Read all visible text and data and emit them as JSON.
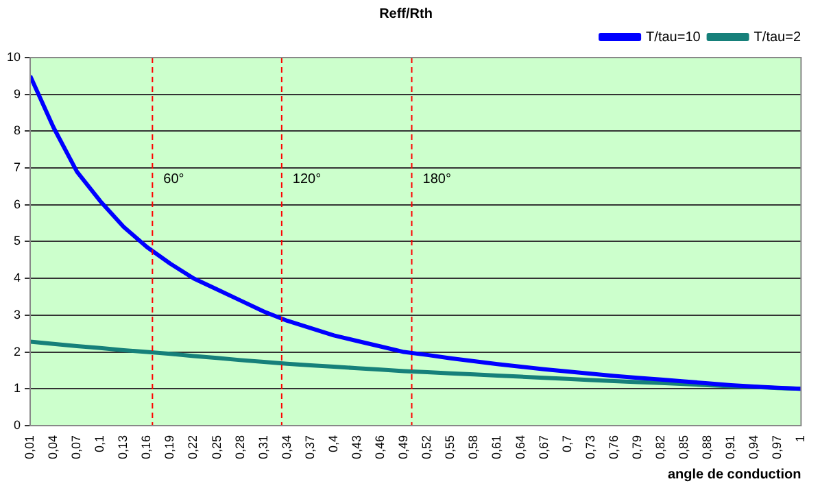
{
  "chart_data": {
    "type": "line",
    "title": "Reff/Rth",
    "xlabel": "angle de conduction",
    "x": [
      0.01,
      0.04,
      0.07,
      0.1,
      0.13,
      0.16,
      0.19,
      0.22,
      0.25,
      0.28,
      0.31,
      0.34,
      0.37,
      0.4,
      0.43,
      0.46,
      0.49,
      0.52,
      0.55,
      0.58,
      0.61,
      0.64,
      0.67,
      0.7,
      0.73,
      0.76,
      0.79,
      0.82,
      0.85,
      0.88,
      0.91,
      0.94,
      0.97,
      1
    ],
    "xlim": [
      0.01,
      1
    ],
    "xticks": [
      {
        "value": 0.01,
        "label": "0,01"
      },
      {
        "value": 0.04,
        "label": "0,04"
      },
      {
        "value": 0.07,
        "label": "0,07"
      },
      {
        "value": 0.1,
        "label": "0,1"
      },
      {
        "value": 0.13,
        "label": "0,13"
      },
      {
        "value": 0.16,
        "label": "0,16"
      },
      {
        "value": 0.19,
        "label": "0,19"
      },
      {
        "value": 0.22,
        "label": "0,22"
      },
      {
        "value": 0.25,
        "label": "0,25"
      },
      {
        "value": 0.28,
        "label": "0,28"
      },
      {
        "value": 0.31,
        "label": "0,31"
      },
      {
        "value": 0.34,
        "label": "0,34"
      },
      {
        "value": 0.37,
        "label": "0,37"
      },
      {
        "value": 0.4,
        "label": "0,4"
      },
      {
        "value": 0.43,
        "label": "0,43"
      },
      {
        "value": 0.46,
        "label": "0,46"
      },
      {
        "value": 0.49,
        "label": "0,49"
      },
      {
        "value": 0.52,
        "label": "0,52"
      },
      {
        "value": 0.55,
        "label": "0,55"
      },
      {
        "value": 0.58,
        "label": "0,58"
      },
      {
        "value": 0.61,
        "label": "0,61"
      },
      {
        "value": 0.64,
        "label": "0,64"
      },
      {
        "value": 0.67,
        "label": "0,67"
      },
      {
        "value": 0.7,
        "label": "0,7"
      },
      {
        "value": 0.73,
        "label": "0,73"
      },
      {
        "value": 0.76,
        "label": "0,76"
      },
      {
        "value": 0.79,
        "label": "0,79"
      },
      {
        "value": 0.82,
        "label": "0,82"
      },
      {
        "value": 0.85,
        "label": "0,85"
      },
      {
        "value": 0.88,
        "label": "0,88"
      },
      {
        "value": 0.91,
        "label": "0,91"
      },
      {
        "value": 0.94,
        "label": "0,94"
      },
      {
        "value": 0.97,
        "label": "0,97"
      },
      {
        "value": 1,
        "label": "1"
      }
    ],
    "ylim": [
      0,
      10
    ],
    "yticks": [
      0,
      1,
      2,
      3,
      4,
      5,
      6,
      7,
      8,
      9,
      10
    ],
    "series": [
      {
        "name": "T/tau=10",
        "color": "#0000ff",
        "values": [
          9.5,
          8.1,
          6.9,
          6.1,
          5.4,
          4.85,
          4.4,
          4.0,
          3.7,
          3.4,
          3.1,
          2.85,
          2.65,
          2.45,
          2.3,
          2.15,
          2.0,
          1.92,
          1.83,
          1.75,
          1.67,
          1.6,
          1.53,
          1.47,
          1.41,
          1.35,
          1.3,
          1.25,
          1.2,
          1.15,
          1.1,
          1.06,
          1.03,
          1.0
        ]
      },
      {
        "name": "T/tau=2",
        "color": "#16807a",
        "values": [
          2.28,
          2.22,
          2.16,
          2.11,
          2.05,
          2.0,
          1.95,
          1.89,
          1.84,
          1.78,
          1.73,
          1.68,
          1.64,
          1.6,
          1.56,
          1.52,
          1.48,
          1.45,
          1.42,
          1.39,
          1.36,
          1.33,
          1.3,
          1.27,
          1.24,
          1.21,
          1.18,
          1.16,
          1.13,
          1.1,
          1.07,
          1.05,
          1.02,
          1.0
        ]
      }
    ],
    "ref_lines": [
      {
        "axis": "x",
        "value": 0.167,
        "color": "#ff0000",
        "line_style": "dashed"
      },
      {
        "axis": "x",
        "value": 0.333,
        "color": "#ff0000",
        "line_style": "dashed"
      },
      {
        "axis": "x",
        "value": 0.5,
        "color": "#ff0000",
        "line_style": "dashed"
      }
    ],
    "annotations": [
      {
        "text": "60°",
        "x": 0.167,
        "y": 6.7
      },
      {
        "text": "120°",
        "x": 0.333,
        "y": 6.7
      },
      {
        "text": "180°",
        "x": 0.5,
        "y": 6.7
      }
    ],
    "grid": "y",
    "legend": "top right",
    "marker": "none",
    "line_style": "solid"
  }
}
